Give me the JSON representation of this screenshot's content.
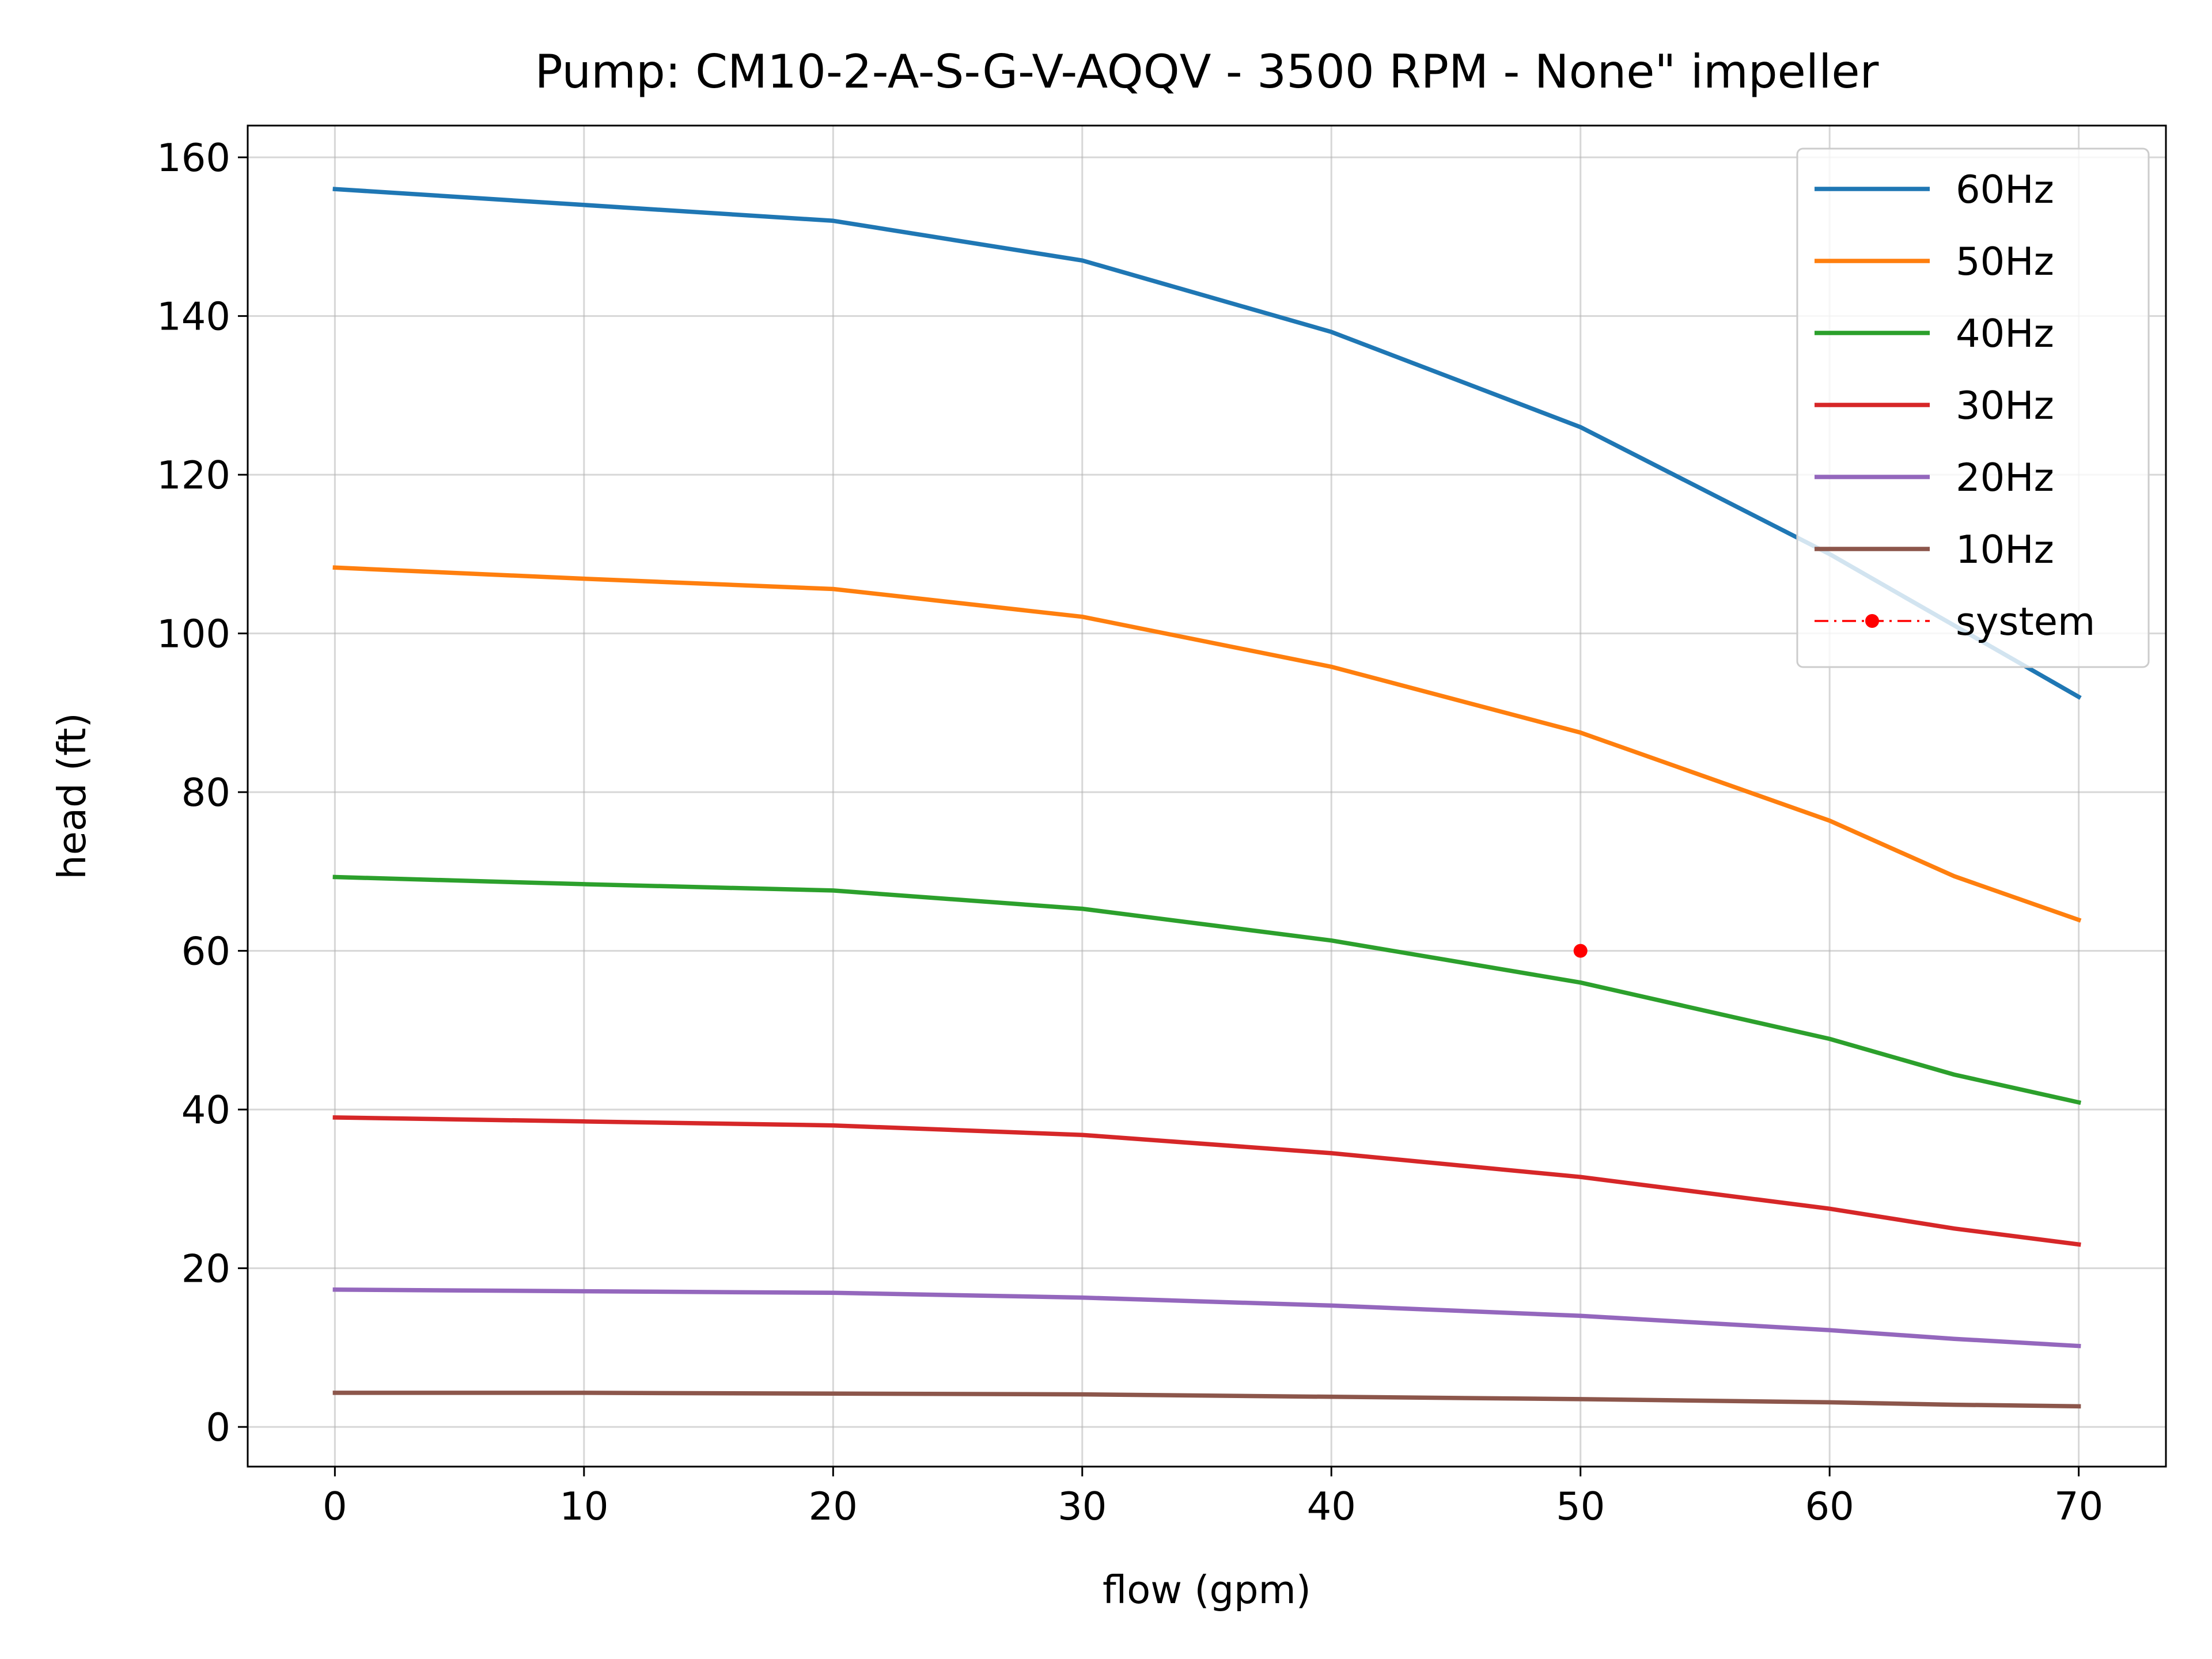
{
  "chart_data": {
    "type": "line",
    "title": "Pump: CM10-2-A-S-G-V-AQQV - 3500 RPM - None\" impeller",
    "xlabel": "flow (gpm)",
    "ylabel": "head (ft)",
    "xlim": [
      -3.5,
      73.5
    ],
    "ylim": [
      -5,
      164
    ],
    "xticks": [
      0,
      10,
      20,
      30,
      40,
      50,
      60,
      70
    ],
    "yticks": [
      0,
      20,
      40,
      60,
      80,
      100,
      120,
      140,
      160
    ],
    "grid": true,
    "legend_position": "top-right",
    "series": [
      {
        "name": "60Hz",
        "color": "#1f77b4",
        "x": [
          0,
          10,
          20,
          30,
          40,
          50,
          60,
          65,
          70
        ],
        "y": [
          156,
          154,
          152,
          147,
          138,
          126,
          110,
          101,
          92
        ]
      },
      {
        "name": "50Hz",
        "color": "#ff7f0e",
        "x": [
          0,
          10,
          20,
          30,
          40,
          50,
          60,
          65,
          70
        ],
        "y": [
          108.3,
          106.9,
          105.6,
          102.1,
          95.8,
          87.5,
          76.4,
          69.4,
          63.9
        ]
      },
      {
        "name": "40Hz",
        "color": "#2ca02c",
        "x": [
          0,
          10,
          20,
          30,
          40,
          50,
          60,
          65,
          70
        ],
        "y": [
          69.3,
          68.4,
          67.6,
          65.3,
          61.3,
          56.0,
          48.9,
          44.4,
          40.9
        ]
      },
      {
        "name": "30Hz",
        "color": "#d62728",
        "x": [
          0,
          10,
          20,
          30,
          40,
          50,
          60,
          65,
          70
        ],
        "y": [
          39.0,
          38.5,
          38.0,
          36.8,
          34.5,
          31.5,
          27.5,
          25.0,
          23.0
        ]
      },
      {
        "name": "20Hz",
        "color": "#9467bd",
        "x": [
          0,
          10,
          20,
          30,
          40,
          50,
          60,
          65,
          70
        ],
        "y": [
          17.3,
          17.1,
          16.9,
          16.3,
          15.3,
          14.0,
          12.2,
          11.1,
          10.2
        ]
      },
      {
        "name": "10Hz",
        "color": "#8c564b",
        "x": [
          0,
          10,
          20,
          30,
          40,
          50,
          60,
          65,
          70
        ],
        "y": [
          4.3,
          4.3,
          4.2,
          4.1,
          3.8,
          3.5,
          3.1,
          2.8,
          2.6
        ]
      }
    ],
    "system": {
      "name": "system",
      "color": "#ff0000",
      "style": "dash-dot with point markers",
      "x": [
        50
      ],
      "y": [
        60
      ]
    }
  }
}
